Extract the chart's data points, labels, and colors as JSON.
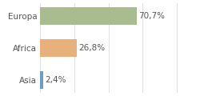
{
  "categories": [
    "Asia",
    "Africa",
    "Europa"
  ],
  "values": [
    2.4,
    26.8,
    70.7
  ],
  "labels": [
    "2,4%",
    "26,8%",
    "70,7%"
  ],
  "colors": [
    "#6b9ec7",
    "#e8b07a",
    "#a8bc8f"
  ],
  "background_color": "#ffffff",
  "xlim": [
    0,
    105
  ],
  "bar_height": 0.55,
  "label_fontsize": 7.5,
  "tick_fontsize": 7.5,
  "figwidth": 2.8,
  "figheight": 1.2,
  "dpi": 100
}
